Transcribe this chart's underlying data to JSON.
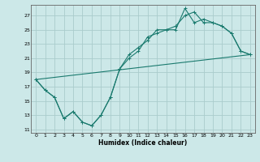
{
  "title": "",
  "xlabel": "Humidex (Indice chaleur)",
  "bg_color": "#cce8e8",
  "grid_color": "#aacccc",
  "line_color": "#1a7a6e",
  "xlim": [
    -0.5,
    23.5
  ],
  "ylim": [
    10.5,
    28.5
  ],
  "xticks": [
    0,
    1,
    2,
    3,
    4,
    5,
    6,
    7,
    8,
    9,
    10,
    11,
    12,
    13,
    14,
    15,
    16,
    17,
    18,
    19,
    20,
    21,
    22,
    23
  ],
  "yticks": [
    11,
    13,
    15,
    17,
    19,
    21,
    23,
    25,
    27
  ],
  "line1_x": [
    0,
    1,
    2,
    3,
    4,
    5,
    6,
    7,
    8,
    9,
    10,
    11,
    12,
    13,
    14,
    15,
    16,
    17,
    18,
    19,
    20,
    21,
    22,
    23
  ],
  "line1_y": [
    18,
    16.5,
    15.5,
    12.5,
    13.5,
    12,
    11.5,
    13,
    15.5,
    19.5,
    21,
    22,
    24,
    24.5,
    25,
    25,
    28,
    26,
    26.5,
    26,
    25.5,
    24.5,
    22,
    21.5
  ],
  "line2_x": [
    0,
    1,
    2,
    3,
    4,
    5,
    6,
    7,
    8,
    9,
    10,
    11,
    12,
    13,
    14,
    15,
    16,
    17,
    18,
    19,
    20,
    21,
    22,
    23
  ],
  "line2_y": [
    18,
    16.5,
    15.5,
    12.5,
    13.5,
    12,
    11.5,
    13,
    15.5,
    19.5,
    21.5,
    22.5,
    23.5,
    25,
    25,
    25.5,
    27,
    27.5,
    26,
    26,
    25.5,
    24.5,
    22,
    21.5
  ],
  "line3_x": [
    0,
    23
  ],
  "line3_y": [
    18,
    21.5
  ]
}
